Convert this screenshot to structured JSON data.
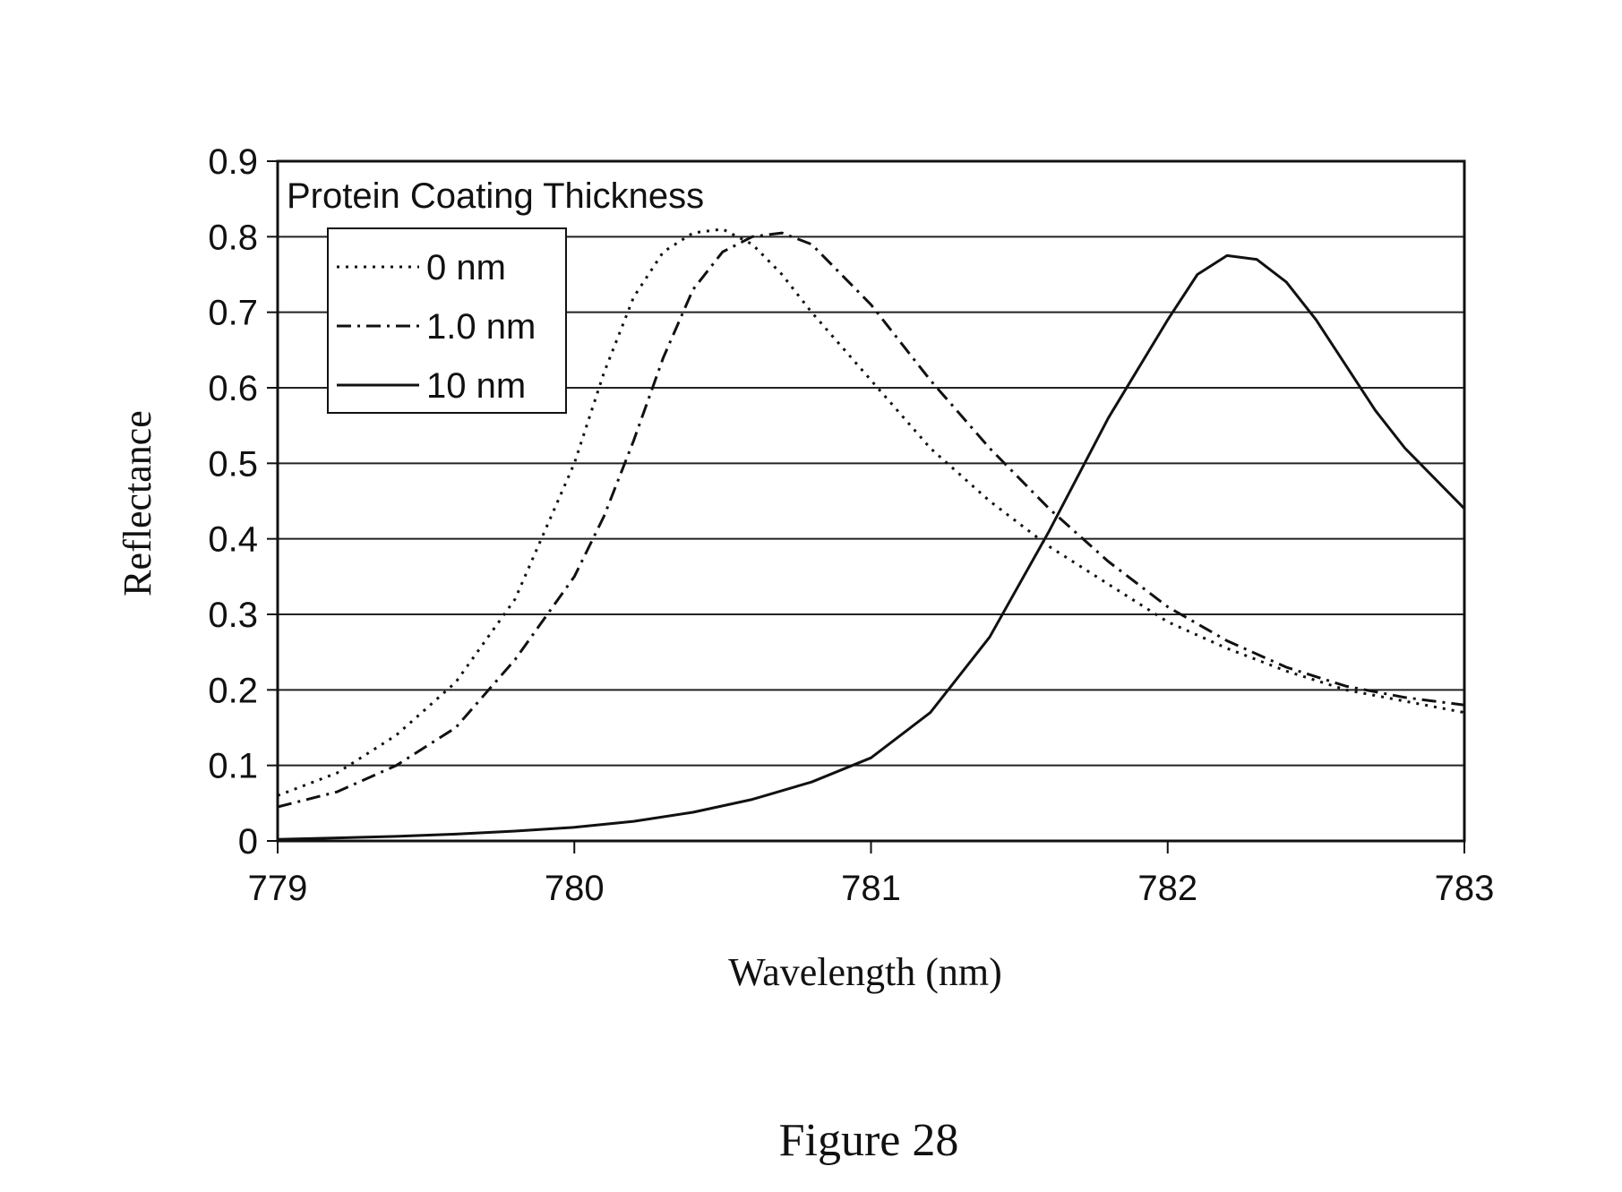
{
  "chart_data": {
    "type": "line",
    "legend_title": "Protein Coating Thickness",
    "xlabel": "Wavelength (nm)",
    "ylabel": "Reflectance",
    "xlim": [
      779,
      783
    ],
    "ylim": [
      0,
      0.9
    ],
    "xticks": [
      "779",
      "780",
      "781",
      "782",
      "783"
    ],
    "yticks": [
      "0",
      "0.1",
      "0.2",
      "0.3",
      "0.4",
      "0.5",
      "0.6",
      "0.7",
      "0.8",
      "0.9"
    ],
    "grid": "horizontal",
    "legend_position": "top-left",
    "series": [
      {
        "name": "0 nm",
        "style": "dotted",
        "x": [
          779.0,
          779.2,
          779.4,
          779.6,
          779.8,
          780.0,
          780.1,
          780.2,
          780.3,
          780.4,
          780.5,
          780.6,
          780.7,
          780.8,
          781.0,
          781.2,
          781.4,
          781.6,
          781.8,
          782.0,
          782.2,
          782.4,
          782.6,
          782.8,
          783.0
        ],
        "y": [
          0.06,
          0.09,
          0.14,
          0.21,
          0.32,
          0.5,
          0.62,
          0.72,
          0.78,
          0.805,
          0.81,
          0.79,
          0.75,
          0.7,
          0.61,
          0.52,
          0.45,
          0.39,
          0.34,
          0.29,
          0.255,
          0.225,
          0.2,
          0.185,
          0.17
        ]
      },
      {
        "name": "1.0 nm",
        "style": "dash-dot",
        "x": [
          779.0,
          779.2,
          779.4,
          779.6,
          779.8,
          780.0,
          780.1,
          780.2,
          780.3,
          780.4,
          780.5,
          780.6,
          780.7,
          780.8,
          781.0,
          781.2,
          781.4,
          781.6,
          781.8,
          782.0,
          782.2,
          782.4,
          782.6,
          782.8,
          783.0
        ],
        "y": [
          0.045,
          0.065,
          0.1,
          0.15,
          0.24,
          0.35,
          0.43,
          0.53,
          0.64,
          0.73,
          0.78,
          0.8,
          0.805,
          0.79,
          0.71,
          0.61,
          0.52,
          0.44,
          0.37,
          0.31,
          0.265,
          0.23,
          0.205,
          0.19,
          0.18
        ]
      },
      {
        "name": "10 nm",
        "style": "solid",
        "x": [
          779.0,
          779.2,
          779.4,
          779.6,
          779.8,
          780.0,
          780.2,
          780.4,
          780.6,
          780.8,
          781.0,
          781.2,
          781.4,
          781.6,
          781.8,
          782.0,
          782.1,
          782.2,
          782.3,
          782.4,
          782.5,
          782.6,
          782.7,
          782.8,
          783.0
        ],
        "y": [
          0.002,
          0.004,
          0.006,
          0.009,
          0.013,
          0.018,
          0.026,
          0.038,
          0.055,
          0.078,
          0.11,
          0.17,
          0.27,
          0.41,
          0.56,
          0.69,
          0.75,
          0.775,
          0.77,
          0.74,
          0.69,
          0.63,
          0.57,
          0.52,
          0.44
        ]
      }
    ]
  },
  "figure_caption": "Figure 28"
}
